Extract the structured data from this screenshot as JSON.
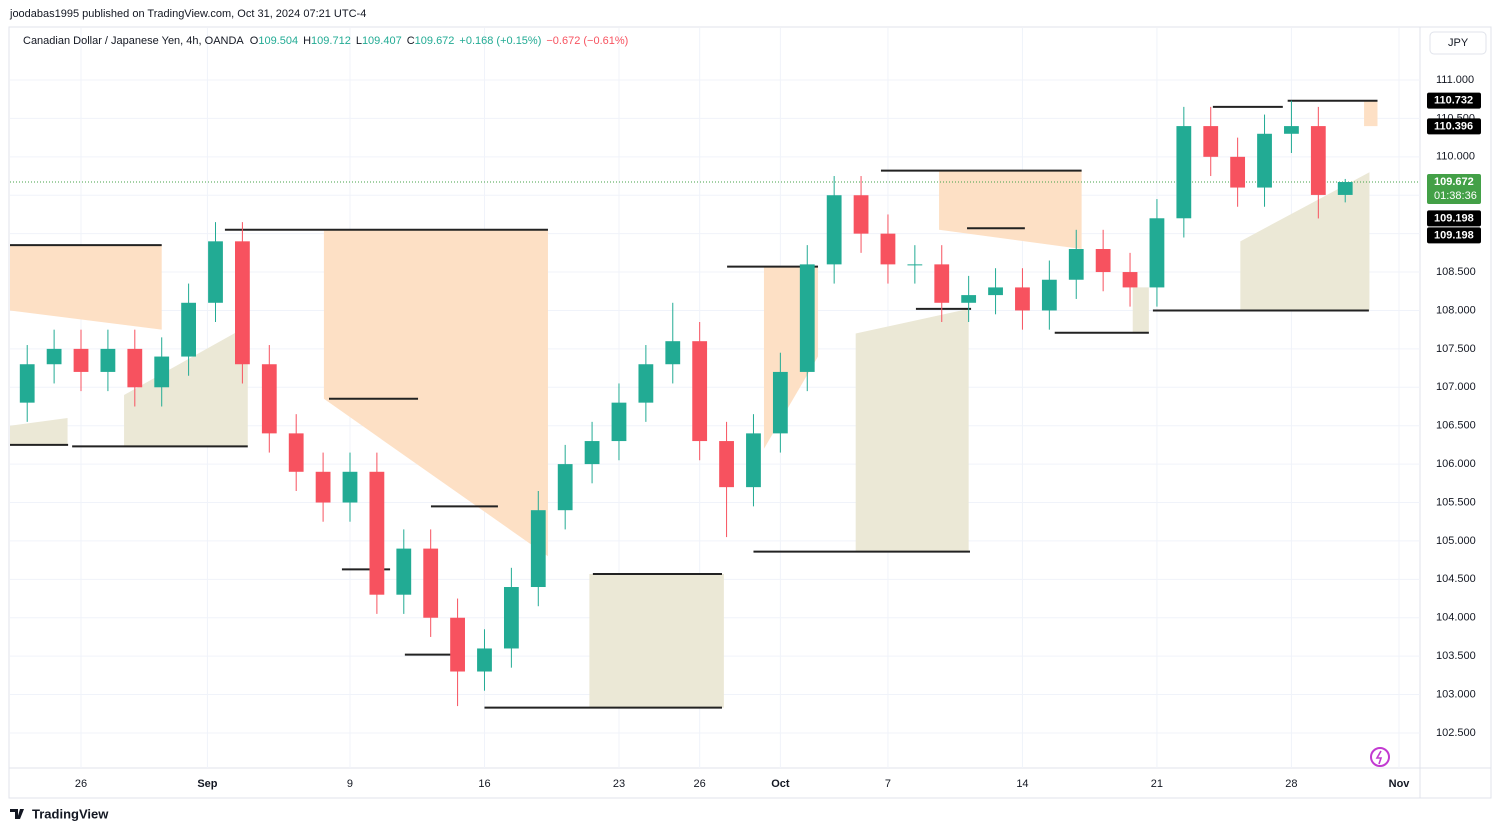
{
  "published": "joodabas1995 published on TradingView.com, Oct 31, 2024 07:21 UTC-4",
  "header": {
    "symbol": "Canadian Dollar / Japanese Yen, 4h, OANDA",
    "ohlc": [
      {
        "key": "O",
        "value": 109.504
      },
      {
        "key": "H",
        "value": 109.712
      },
      {
        "key": "L",
        "value": 109.407
      },
      {
        "key": "C",
        "value": 109.672
      }
    ],
    "change_up": "+0.168 (+0.15%)",
    "change_down": "−0.672 (−0.61%)"
  },
  "currency": "JPY",
  "brand": "TradingView",
  "chart_data": {
    "type": "candlestick",
    "up_color": "#22ab94",
    "down_color": "#f7525f",
    "xlim": [
      -2.64,
      49.78
    ],
    "ylim": [
      102.044,
      111.677
    ],
    "xticks": [
      {
        "value": 0,
        "label": "26"
      },
      {
        "value": 4.7,
        "label": "Sep"
      },
      {
        "value": 10,
        "label": "9"
      },
      {
        "value": 15,
        "label": "16"
      },
      {
        "value": 20,
        "label": "23"
      },
      {
        "value": 23,
        "label": "26"
      },
      {
        "value": 26,
        "label": "Oct"
      },
      {
        "value": 30,
        "label": "7"
      },
      {
        "value": 35,
        "label": "14"
      },
      {
        "value": 40,
        "label": "21"
      },
      {
        "value": 45,
        "label": "28"
      },
      {
        "value": 49,
        "label": "Nov"
      }
    ],
    "yticks": [
      {
        "value": 102.5,
        "label": "102.500"
      },
      {
        "value": 103,
        "label": "103.000"
      },
      {
        "value": 103.5,
        "label": "103.500"
      },
      {
        "value": 104,
        "label": "104.000"
      },
      {
        "value": 104.5,
        "label": "104.500"
      },
      {
        "value": 105,
        "label": "105.000"
      },
      {
        "value": 105.5,
        "label": "105.500"
      },
      {
        "value": 106,
        "label": "106.000"
      },
      {
        "value": 106.5,
        "label": "106.500"
      },
      {
        "value": 107,
        "label": "107.000"
      },
      {
        "value": 107.5,
        "label": "107.500"
      },
      {
        "value": 108,
        "label": "108.000"
      },
      {
        "value": 108.5,
        "label": "108.500"
      },
      {
        "value": 109,
        "label": "109.000"
      },
      {
        "value": 109.5,
        "label": "109.500"
      },
      {
        "value": 110,
        "label": "110.000"
      },
      {
        "value": 110.5,
        "label": "110.500"
      },
      {
        "value": 111,
        "label": "111.000"
      }
    ],
    "grid": true,
    "x": [
      -2,
      -1,
      0,
      1,
      2,
      3,
      4,
      5,
      6,
      7,
      8,
      9,
      10,
      11,
      12,
      13,
      14,
      15,
      16,
      17,
      18,
      19,
      20,
      21,
      22,
      23,
      24,
      25,
      26,
      27,
      28,
      29,
      30,
      31,
      32,
      33,
      34,
      35,
      36,
      37,
      38,
      39,
      40,
      41,
      42,
      43,
      44,
      45,
      46,
      47
    ],
    "open": [
      106.8,
      107.3,
      107.5,
      107.2,
      107.5,
      107.0,
      107.4,
      108.1,
      108.9,
      107.3,
      106.4,
      105.9,
      105.5,
      105.9,
      104.3,
      104.9,
      104.0,
      103.3,
      103.6,
      104.4,
      105.4,
      106.0,
      106.3,
      106.8,
      107.3,
      107.6,
      106.3,
      105.7,
      106.4,
      107.2,
      108.6,
      109.5,
      109.0,
      108.6,
      108.6,
      108.1,
      108.2,
      108.3,
      108.0,
      108.4,
      108.8,
      108.5,
      108.3,
      109.2,
      110.4,
      110.0,
      109.6,
      110.3,
      110.4,
      109.504
    ],
    "high": [
      107.55,
      107.75,
      107.75,
      107.75,
      107.75,
      107.65,
      108.35,
      109.15,
      109.15,
      107.55,
      106.65,
      106.15,
      106.15,
      106.15,
      105.15,
      105.15,
      104.25,
      103.85,
      104.65,
      105.65,
      106.25,
      106.55,
      107.05,
      107.55,
      108.1,
      107.85,
      106.55,
      106.65,
      107.45,
      108.85,
      109.75,
      109.75,
      109.25,
      108.85,
      108.85,
      108.45,
      108.55,
      108.55,
      108.65,
      109.05,
      109.05,
      108.75,
      109.45,
      110.65,
      110.65,
      110.25,
      110.55,
      110.732,
      110.65,
      109.712
    ],
    "low": [
      106.55,
      107.05,
      106.95,
      106.95,
      106.75,
      106.75,
      107.15,
      107.85,
      107.05,
      106.15,
      105.65,
      105.25,
      105.25,
      104.05,
      104.05,
      103.75,
      102.85,
      103.05,
      103.35,
      104.15,
      105.15,
      105.75,
      106.05,
      106.55,
      107.05,
      106.05,
      105.05,
      105.45,
      106.15,
      106.95,
      108.35,
      108.75,
      108.35,
      108.35,
      107.85,
      107.85,
      107.95,
      107.75,
      107.75,
      108.15,
      108.25,
      108.05,
      108.05,
      108.95,
      109.75,
      109.35,
      109.35,
      110.05,
      109.198,
      109.407
    ],
    "close": [
      107.3,
      107.5,
      107.2,
      107.5,
      107.0,
      107.4,
      108.1,
      108.9,
      107.3,
      106.4,
      105.9,
      105.5,
      105.9,
      104.3,
      104.9,
      104.0,
      103.3,
      103.6,
      104.4,
      105.4,
      106.0,
      106.3,
      106.8,
      107.3,
      107.6,
      106.3,
      105.7,
      106.4,
      107.2,
      108.6,
      109.5,
      109.0,
      108.6,
      108.6,
      108.1,
      108.2,
      108.3,
      108.0,
      108.4,
      108.8,
      108.5,
      108.3,
      109.2,
      110.4,
      110.0,
      109.6,
      110.3,
      110.4,
      109.504,
      109.672
    ],
    "zones": [
      {
        "color": "#fde0c5",
        "x": [
          -2.64,
          3.0
        ],
        "top": [
          108.85,
          108.85
        ],
        "bottom": [
          108.0,
          107.75
        ]
      },
      {
        "color": "#fde0c5",
        "x": [
          9.03,
          17.36
        ],
        "top": [
          109.05,
          109.05
        ],
        "bottom": [
          106.85,
          104.8
        ]
      },
      {
        "color": "#fde0c5",
        "x": [
          25.39,
          27.4
        ],
        "top": [
          108.57,
          108.57
        ],
        "bottom": [
          106.2,
          107.4
        ]
      },
      {
        "color": "#fde0c5",
        "x": [
          31.9,
          37.2
        ],
        "top": [
          109.82,
          109.82
        ],
        "bottom": [
          109.05,
          108.8
        ]
      },
      {
        "color": "#fde0c5",
        "x": [
          47.7,
          48.2
        ],
        "top": [
          110.73,
          110.73
        ],
        "bottom": [
          110.4,
          110.4
        ]
      },
      {
        "color": "#ebe8d6",
        "x": [
          -2.64,
          -0.5
        ],
        "top": [
          106.5,
          106.6
        ],
        "bottom": [
          106.25,
          106.25
        ]
      },
      {
        "color": "#ebe8d6",
        "x": [
          1.6,
          6.2
        ],
        "top": [
          106.9,
          107.8
        ],
        "bottom": [
          106.23,
          106.23
        ]
      },
      {
        "color": "#ebe8d6",
        "x": [
          18.9,
          23.9
        ],
        "top": [
          104.57,
          104.57
        ],
        "bottom": [
          102.83,
          102.83
        ]
      },
      {
        "color": "#ebe8d6",
        "x": [
          28.8,
          33.0
        ],
        "top": [
          107.7,
          108.02
        ],
        "bottom": [
          104.86,
          104.86
        ]
      },
      {
        "color": "#ebe8d6",
        "x": [
          39.1,
          39.7
        ],
        "top": [
          108.3,
          108.3
        ],
        "bottom": [
          107.71,
          107.71
        ]
      },
      {
        "color": "#ebe8d6",
        "x": [
          43.1,
          47.9
        ],
        "top": [
          108.9,
          109.8
        ],
        "bottom": [
          108.0,
          108.0
        ]
      }
    ],
    "levels": [
      {
        "x": [
          -2.64,
          3.0
        ],
        "value": 108.85
      },
      {
        "x": [
          5.35,
          17.36
        ],
        "value": 109.05
      },
      {
        "x": [
          9.22,
          12.53
        ],
        "value": 106.85
      },
      {
        "x": [
          13.01,
          15.5
        ],
        "value": 105.45
      },
      {
        "x": [
          24.02,
          27.4
        ],
        "value": 108.57
      },
      {
        "x": [
          29.74,
          37.2
        ],
        "value": 109.82
      },
      {
        "x": [
          32.94,
          35.09
        ],
        "value": 109.07
      },
      {
        "x": [
          42.08,
          44.68
        ],
        "value": 110.65
      },
      {
        "x": [
          44.86,
          48.2
        ],
        "value": 110.73
      },
      {
        "x": [
          -2.64,
          -0.48
        ],
        "value": 106.25
      },
      {
        "x": [
          -0.33,
          6.2
        ],
        "value": 106.23
      },
      {
        "x": [
          15.0,
          23.83
        ],
        "value": 102.83
      },
      {
        "x": [
          25.0,
          33.05
        ],
        "value": 104.86
      },
      {
        "x": [
          39.85,
          47.88
        ],
        "value": 108.0
      },
      {
        "x": [
          19.03,
          23.83
        ],
        "value": 104.57
      },
      {
        "x": [
          31.04,
          33.09
        ],
        "value": 108.02
      },
      {
        "x": [
          36.2,
          39.7
        ],
        "value": 107.71
      },
      {
        "x": [
          9.7,
          11.49
        ],
        "value": 104.63
      },
      {
        "x": [
          12.04,
          13.9
        ],
        "value": 103.52
      }
    ],
    "price_labels": [
      {
        "value": 110.732,
        "color": "#000000"
      },
      {
        "value": 110.396,
        "color": "#000000"
      },
      {
        "value": 109.672,
        "color": "#43a047",
        "sub": "01:38:36"
      },
      {
        "value": 109.198,
        "color": "#000000"
      },
      {
        "value": 109.198,
        "color": "#000000"
      }
    ],
    "last_price_line": 109.672
  }
}
